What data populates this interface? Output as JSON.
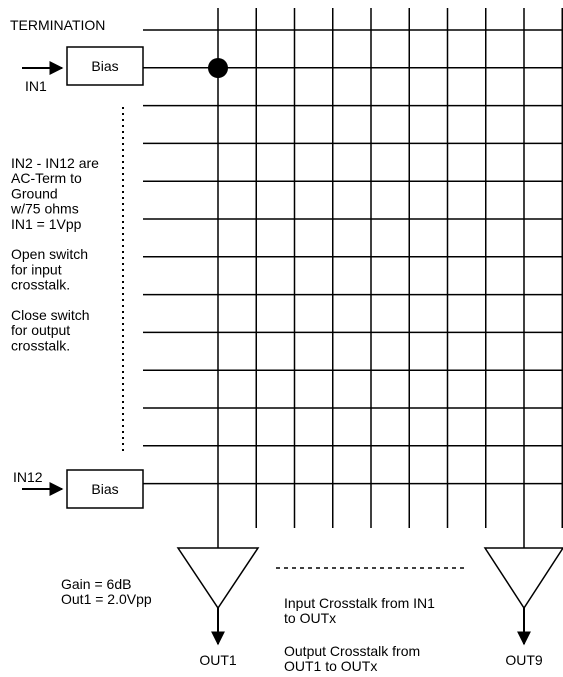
{
  "labels": {
    "termination": "TERMINATION",
    "in1": "IN1",
    "in12": "IN12",
    "bias_top": "Bias",
    "bias_bottom": "Bias",
    "out1": "OUT1",
    "out9": "OUT9"
  },
  "note_block": [
    "IN2 - IN12 are",
    "AC-Term to",
    "Ground",
    "w/75 ohms",
    "IN1 = 1Vpp",
    "",
    "Open switch",
    "for input",
    "crosstalk.",
    "",
    "Close switch",
    "for output",
    "crosstalk."
  ],
  "amp_note": [
    "Gain = 6dB",
    "Out1 = 2.0Vpp"
  ],
  "crosstalk_notes": {
    "input": [
      "Input Crosstalk from IN1",
      "to OUTx"
    ],
    "output": [
      "Output Crosstalk from",
      "OUT1 to OUTx"
    ]
  },
  "matrix": {
    "inputs": 12,
    "outputs": 9
  }
}
